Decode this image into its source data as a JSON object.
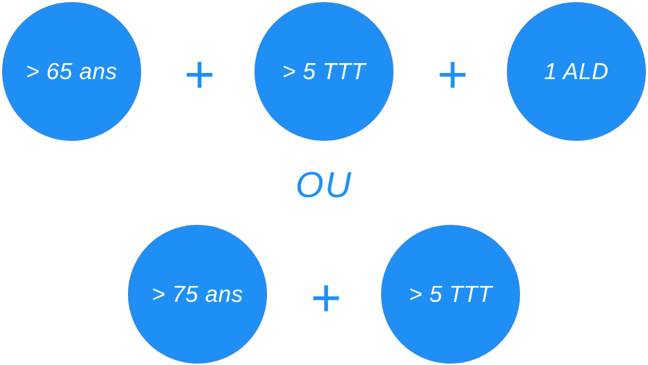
{
  "row1": {
    "circle1": "> 65 ans",
    "plus1": "+",
    "circle2": "> 5 TTT",
    "plus2": "+",
    "circle3": "1 ALD"
  },
  "separator": "OU",
  "row2": {
    "circle1": "> 75 ans",
    "plus1": "+",
    "circle2": "> 5 TTT"
  },
  "colors": {
    "circle_fill": "#1f8ff5",
    "text_on_circle": "#ffffff",
    "accent": "#1f8ff5"
  }
}
